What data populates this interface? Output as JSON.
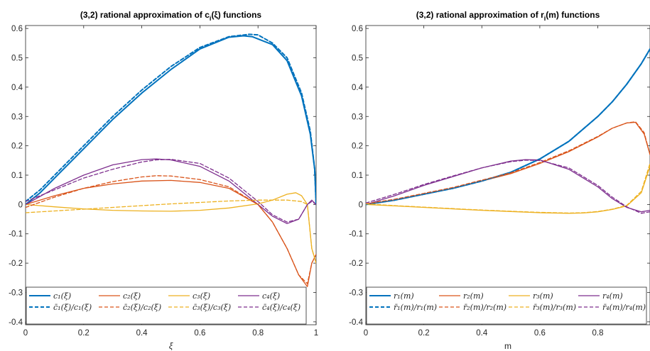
{
  "chart_data": [
    {
      "type": "line",
      "title": "(3,2) rational approximation of c",
      "title_sub": "i",
      "title_rest": "(ξ) functions",
      "xlabel": "ξ",
      "ylabel": "",
      "xlim": [
        0,
        1
      ],
      "ylim": [
        -0.41,
        0.61
      ],
      "xticks": [
        "0",
        "0.2",
        "0.4",
        "0.6",
        "0.8",
        "1"
      ],
      "yticks": [
        "-0.4",
        "-0.3",
        "-0.2",
        "-0.1",
        "0",
        "0.1",
        "0.2",
        "0.3",
        "0.4",
        "0.5",
        "0.6"
      ],
      "grid": false,
      "legend_position": "bottom-left",
      "series": [
        {
          "name": "c₁(ξ)",
          "color": "#0072BD",
          "dash": "solid",
          "width": 2,
          "x": [
            0,
            0.05,
            0.1,
            0.2,
            0.3,
            0.4,
            0.5,
            0.6,
            0.7,
            0.75,
            0.78,
            0.85,
            0.9,
            0.95,
            0.98,
            0.995,
            1.0
          ],
          "y": [
            0.0,
            0.04,
            0.09,
            0.19,
            0.29,
            0.38,
            0.46,
            0.53,
            0.57,
            0.575,
            0.572,
            0.545,
            0.49,
            0.37,
            0.24,
            0.12,
            0.0
          ]
        },
        {
          "name": "c₂(ξ)",
          "color": "#D95319",
          "dash": "solid",
          "width": 1.3,
          "x": [
            0,
            0.1,
            0.2,
            0.3,
            0.4,
            0.5,
            0.6,
            0.7,
            0.8,
            0.85,
            0.9,
            0.94,
            0.97,
            0.985,
            1.0
          ],
          "y": [
            0.0,
            0.03,
            0.055,
            0.07,
            0.08,
            0.082,
            0.075,
            0.055,
            0.0,
            -0.06,
            -0.15,
            -0.24,
            -0.28,
            -0.2,
            -0.17
          ]
        },
        {
          "name": "c₃(ξ)",
          "color": "#EDB120",
          "dash": "solid",
          "width": 1.3,
          "x": [
            0,
            0.1,
            0.2,
            0.3,
            0.4,
            0.5,
            0.6,
            0.7,
            0.8,
            0.85,
            0.9,
            0.93,
            0.95,
            0.97,
            0.985,
            1.0
          ],
          "y": [
            0.0,
            -0.008,
            -0.015,
            -0.02,
            -0.022,
            -0.023,
            -0.02,
            -0.012,
            0.002,
            0.015,
            0.035,
            0.04,
            0.03,
            0.0,
            -0.15,
            -0.2
          ]
        },
        {
          "name": "c₄(ξ)",
          "color": "#7E2F8E",
          "dash": "solid",
          "width": 1.3,
          "x": [
            0,
            0.1,
            0.2,
            0.3,
            0.4,
            0.45,
            0.5,
            0.6,
            0.7,
            0.8,
            0.85,
            0.9,
            0.94,
            0.97,
            0.985,
            1.0
          ],
          "y": [
            0.0,
            0.055,
            0.1,
            0.135,
            0.153,
            0.155,
            0.152,
            0.13,
            0.08,
            0.0,
            -0.04,
            -0.065,
            -0.05,
            0.0,
            0.015,
            0.0
          ]
        },
        {
          "name": "c̄₁(ξ)/c₁(ξ)",
          "color": "#0072BD",
          "dash": "dashed",
          "width": 2,
          "x": [
            0,
            0.05,
            0.1,
            0.2,
            0.3,
            0.4,
            0.5,
            0.6,
            0.7,
            0.77,
            0.8,
            0.85,
            0.9,
            0.95,
            0.98,
            0.995,
            1.0
          ],
          "y": [
            0.01,
            0.05,
            0.1,
            0.2,
            0.3,
            0.39,
            0.47,
            0.535,
            0.572,
            0.58,
            0.578,
            0.55,
            0.5,
            0.38,
            0.25,
            0.12,
            0.0
          ]
        },
        {
          "name": "c̄₂(ξ)/c₂(ξ)",
          "color": "#D95319",
          "dash": "dashed",
          "width": 1.3,
          "x": [
            0,
            0.1,
            0.2,
            0.3,
            0.4,
            0.45,
            0.5,
            0.6,
            0.7,
            0.8,
            0.85,
            0.9,
            0.94,
            0.97,
            0.985,
            1.0
          ],
          "y": [
            -0.01,
            0.025,
            0.055,
            0.078,
            0.094,
            0.098,
            0.097,
            0.085,
            0.06,
            0.0,
            -0.06,
            -0.15,
            -0.24,
            -0.27,
            -0.2,
            -0.17
          ]
        },
        {
          "name": "c̄₃(ξ)/c₃(ξ)",
          "color": "#EDB120",
          "dash": "dashed",
          "width": 1.3,
          "x": [
            0,
            0.1,
            0.2,
            0.3,
            0.4,
            0.5,
            0.6,
            0.7,
            0.8,
            0.9,
            0.95,
            0.97,
            0.985,
            1.0
          ],
          "y": [
            -0.028,
            -0.022,
            -0.016,
            -0.01,
            -0.004,
            0.002,
            0.007,
            0.012,
            0.015,
            0.015,
            0.01,
            0.0,
            -0.15,
            -0.2
          ]
        },
        {
          "name": "c̄₄(ξ)/c₄(ξ)",
          "color": "#7E2F8E",
          "dash": "dashed",
          "width": 1.3,
          "x": [
            0,
            0.1,
            0.2,
            0.3,
            0.4,
            0.45,
            0.5,
            0.6,
            0.7,
            0.8,
            0.85,
            0.9,
            0.94,
            0.97,
            0.985,
            1.0
          ],
          "y": [
            0.01,
            0.05,
            0.09,
            0.12,
            0.145,
            0.152,
            0.154,
            0.14,
            0.09,
            0.01,
            -0.035,
            -0.06,
            -0.05,
            0.0,
            0.01,
            0.0
          ]
        }
      ],
      "legend": [
        {
          "label": "c₁(ξ)",
          "color": "#0072BD",
          "dash": "solid",
          "width": 2
        },
        {
          "label": "c₂(ξ)",
          "color": "#D95319",
          "dash": "solid",
          "width": 1.3
        },
        {
          "label": "c₃(ξ)",
          "color": "#EDB120",
          "dash": "solid",
          "width": 1.3
        },
        {
          "label": "c₄(ξ)",
          "color": "#7E2F8E",
          "dash": "solid",
          "width": 1.3
        },
        {
          "label": "c̄₁(ξ)/c₁(ξ)",
          "color": "#0072BD",
          "dash": "dashed",
          "width": 2
        },
        {
          "label": "c̄₂(ξ)/c₂(ξ)",
          "color": "#D95319",
          "dash": "dashed",
          "width": 1.3
        },
        {
          "label": "c̄₃(ξ)/c₃(ξ)",
          "color": "#EDB120",
          "dash": "dashed",
          "width": 1.3
        },
        {
          "label": "c̄₄(ξ)/c₄(ξ)",
          "color": "#7E2F8E",
          "dash": "dashed",
          "width": 1.3
        }
      ]
    },
    {
      "type": "line",
      "title": "(3,2) rational approximation of r",
      "title_sub": "i",
      "title_rest": "(m) functions",
      "xlabel": "m",
      "ylabel": "",
      "xlim": [
        0,
        0.98
      ],
      "ylim": [
        -0.41,
        0.61
      ],
      "xticks": [
        "0",
        "0.2",
        "0.4",
        "0.6",
        "0.8"
      ],
      "yticks": [
        "-0.4",
        "-0.3",
        "-0.2",
        "-0.1",
        "0",
        "0.1",
        "0.2",
        "0.3",
        "0.4",
        "0.5",
        "0.6"
      ],
      "grid": false,
      "legend_position": "bottom-left",
      "series": [
        {
          "name": "r₁(m)",
          "color": "#0072BD",
          "dash": "solid",
          "width": 2,
          "x": [
            0,
            0.1,
            0.2,
            0.3,
            0.4,
            0.5,
            0.6,
            0.7,
            0.8,
            0.85,
            0.9,
            0.95,
            0.98
          ],
          "y": [
            0.0,
            0.015,
            0.035,
            0.055,
            0.08,
            0.11,
            0.155,
            0.215,
            0.3,
            0.35,
            0.41,
            0.48,
            0.53
          ]
        },
        {
          "name": "r₂(m)",
          "color": "#D95319",
          "dash": "solid",
          "width": 1.3,
          "x": [
            0,
            0.1,
            0.2,
            0.3,
            0.4,
            0.5,
            0.6,
            0.7,
            0.8,
            0.85,
            0.9,
            0.93,
            0.96,
            0.98
          ],
          "y": [
            0.0,
            0.015,
            0.035,
            0.055,
            0.08,
            0.105,
            0.14,
            0.18,
            0.23,
            0.26,
            0.278,
            0.28,
            0.24,
            0.17
          ]
        },
        {
          "name": "r₃(m)",
          "color": "#EDB120",
          "dash": "solid",
          "width": 1.3,
          "x": [
            0,
            0.1,
            0.2,
            0.3,
            0.4,
            0.5,
            0.6,
            0.7,
            0.75,
            0.8,
            0.85,
            0.9,
            0.95,
            0.98
          ],
          "y": [
            0.0,
            -0.005,
            -0.01,
            -0.015,
            -0.02,
            -0.024,
            -0.028,
            -0.03,
            -0.029,
            -0.025,
            -0.017,
            -0.005,
            0.04,
            0.13
          ]
        },
        {
          "name": "r₄(m)",
          "color": "#7E2F8E",
          "dash": "solid",
          "width": 1.3,
          "x": [
            0,
            0.1,
            0.2,
            0.3,
            0.4,
            0.5,
            0.55,
            0.6,
            0.7,
            0.8,
            0.85,
            0.9,
            0.95,
            0.98
          ],
          "y": [
            0.0,
            0.03,
            0.065,
            0.095,
            0.125,
            0.148,
            0.153,
            0.152,
            0.12,
            0.06,
            0.02,
            -0.01,
            -0.025,
            -0.02
          ]
        },
        {
          "name": "r̄₁(m)/r₁(m)",
          "color": "#0072BD",
          "dash": "dashed",
          "width": 2,
          "x": [
            0,
            0.1,
            0.2,
            0.3,
            0.4,
            0.5,
            0.6,
            0.7,
            0.8,
            0.85,
            0.9,
            0.95,
            0.98
          ],
          "y": [
            0.0,
            0.015,
            0.035,
            0.055,
            0.08,
            0.11,
            0.155,
            0.215,
            0.3,
            0.35,
            0.41,
            0.48,
            0.53
          ]
        },
        {
          "name": "r̄₂(m)/r₂(m)",
          "color": "#D95319",
          "dash": "dashed",
          "width": 1.3,
          "x": [
            0,
            0.1,
            0.2,
            0.3,
            0.4,
            0.5,
            0.6,
            0.7,
            0.8,
            0.85,
            0.9,
            0.93,
            0.96,
            0.98
          ],
          "y": [
            0.002,
            0.018,
            0.038,
            0.058,
            0.083,
            0.108,
            0.143,
            0.183,
            0.232,
            0.26,
            0.278,
            0.282,
            0.245,
            0.17
          ]
        },
        {
          "name": "r̄₃(m)/r₃(m)",
          "color": "#EDB120",
          "dash": "dashed",
          "width": 1.3,
          "x": [
            0,
            0.1,
            0.2,
            0.3,
            0.4,
            0.5,
            0.6,
            0.7,
            0.75,
            0.8,
            0.85,
            0.9,
            0.95,
            0.98
          ],
          "y": [
            0.002,
            -0.004,
            -0.009,
            -0.014,
            -0.019,
            -0.023,
            -0.027,
            -0.029,
            -0.028,
            -0.024,
            -0.016,
            -0.003,
            0.045,
            0.14
          ]
        },
        {
          "name": "r̄₄(m)/r₄(m)",
          "color": "#7E2F8E",
          "dash": "dashed",
          "width": 1.3,
          "x": [
            0,
            0.1,
            0.2,
            0.3,
            0.4,
            0.5,
            0.55,
            0.6,
            0.7,
            0.8,
            0.85,
            0.9,
            0.95,
            0.98
          ],
          "y": [
            0.005,
            0.035,
            0.068,
            0.097,
            0.125,
            0.146,
            0.151,
            0.15,
            0.125,
            0.065,
            0.025,
            -0.008,
            -0.03,
            -0.025
          ]
        }
      ],
      "legend": [
        {
          "label": "r₁(m)",
          "color": "#0072BD",
          "dash": "solid",
          "width": 2
        },
        {
          "label": "r₂(m)",
          "color": "#D95319",
          "dash": "solid",
          "width": 1.3
        },
        {
          "label": "r₃(m)",
          "color": "#EDB120",
          "dash": "solid",
          "width": 1.3
        },
        {
          "label": "r₄(m)",
          "color": "#7E2F8E",
          "dash": "solid",
          "width": 1.3
        },
        {
          "label": "r̄₁(m)/r₁(m)",
          "color": "#0072BD",
          "dash": "dashed",
          "width": 2
        },
        {
          "label": "r̄₂(m)/r₂(m)",
          "color": "#D95319",
          "dash": "dashed",
          "width": 1.3
        },
        {
          "label": "r̄₃(m)/r₃(m)",
          "color": "#EDB120",
          "dash": "dashed",
          "width": 1.3
        },
        {
          "label": "r̄₄(m)/r₄(m)",
          "color": "#7E2F8E",
          "dash": "dashed",
          "width": 1.3
        }
      ]
    }
  ]
}
